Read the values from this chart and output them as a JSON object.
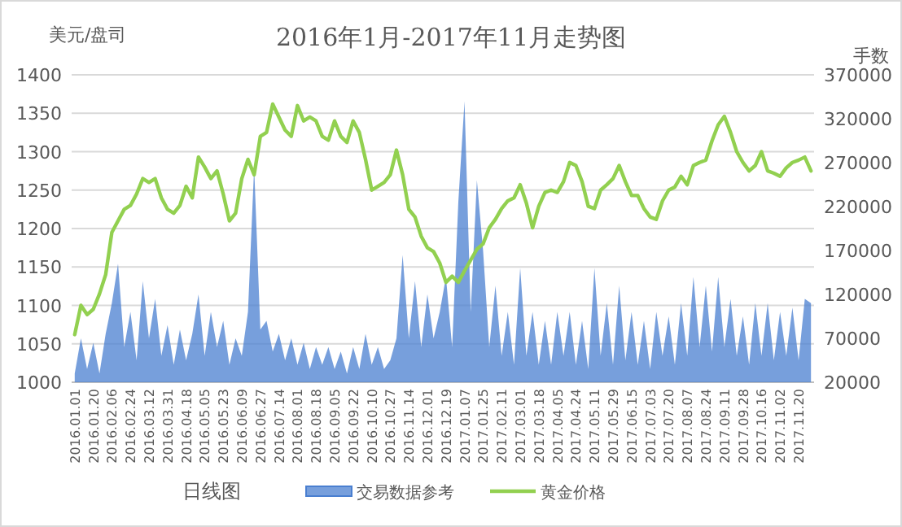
{
  "chart_data": {
    "type": "line",
    "title": "2016年1月-2017年11月走势图",
    "ylabel": "美元/盘司",
    "y2label": "手数",
    "categories": [
      "2016.01.01",
      null,
      null,
      "2016.01.20",
      null,
      null,
      "2016.02.06",
      null,
      null,
      "2016.02.24",
      null,
      null,
      "2016.03.12",
      null,
      null,
      "2016.03.31",
      null,
      null,
      "2016.04.18",
      null,
      null,
      "2016.05.05",
      null,
      null,
      "2016.05.23",
      null,
      null,
      "2016.06.09",
      null,
      null,
      "2016.06.27",
      null,
      null,
      "2016.07.14",
      null,
      null,
      "2016.08.01",
      null,
      null,
      "2016.08.18",
      null,
      null,
      "2016.09.05",
      null,
      null,
      "2016.09.22",
      null,
      null,
      "2016.10.10",
      null,
      null,
      "2016.10.27",
      null,
      null,
      "2016.11.14",
      null,
      null,
      "2016.12.01",
      null,
      null,
      "2016.12.19",
      null,
      null,
      "2017.01.07",
      null,
      null,
      "2017.01.25",
      null,
      null,
      "2017.02.11",
      null,
      null,
      "2017.03.01",
      null,
      null,
      "2017.03.18",
      null,
      null,
      "2017.04.05",
      null,
      null,
      "2017.04.24",
      null,
      null,
      "2017.05.11",
      null,
      null,
      "2017.05.29",
      null,
      null,
      "2017.06.15",
      null,
      null,
      "2017.07.03",
      null,
      null,
      "2017.07.20",
      null,
      null,
      "2017.08.07",
      null,
      null,
      "2017.08.24",
      null,
      null,
      "2017.09.11",
      null,
      null,
      "2017.09.28",
      null,
      null,
      "2017.10.16",
      null,
      null,
      "2017.11.02",
      null,
      null,
      "2017.11.20",
      null,
      null
    ],
    "series": [
      {
        "name": "交易数据参考",
        "type": "area",
        "axis": "y2",
        "color": "#4a7fd0",
        "values": [
          30000,
          70000,
          35000,
          65000,
          30000,
          75000,
          110000,
          155000,
          60000,
          100000,
          45000,
          135000,
          70000,
          115000,
          50000,
          85000,
          40000,
          80000,
          45000,
          75000,
          120000,
          50000,
          100000,
          60000,
          90000,
          40000,
          70000,
          50000,
          100000,
          265000,
          80000,
          90000,
          55000,
          75000,
          45000,
          70000,
          40000,
          65000,
          35000,
          60000,
          40000,
          60000,
          35000,
          55000,
          30000,
          60000,
          35000,
          75000,
          40000,
          60000,
          35000,
          45000,
          70000,
          165000,
          70000,
          135000,
          60000,
          120000,
          70000,
          100000,
          140000,
          60000,
          225000,
          340000,
          100000,
          250000,
          170000,
          60000,
          130000,
          50000,
          100000,
          40000,
          150000,
          50000,
          100000,
          40000,
          90000,
          40000,
          100000,
          50000,
          100000,
          40000,
          90000,
          35000,
          150000,
          50000,
          110000,
          40000,
          130000,
          45000,
          100000,
          40000,
          90000,
          35000,
          100000,
          50000,
          95000,
          40000,
          110000,
          50000,
          140000,
          60000,
          130000,
          55000,
          140000,
          60000,
          115000,
          50000,
          95000,
          40000,
          110000,
          50000,
          110000,
          45000,
          100000,
          50000,
          105000,
          45000,
          115000,
          110000
        ]
      },
      {
        "name": "黄金价格",
        "color": "#92d050",
        "values": [
          1062,
          1100,
          1088,
          1095,
          1115,
          1140,
          1195,
          1210,
          1225,
          1230,
          1245,
          1265,
          1260,
          1265,
          1240,
          1225,
          1220,
          1230,
          1255,
          1240,
          1293,
          1280,
          1265,
          1275,
          1245,
          1210,
          1220,
          1265,
          1290,
          1270,
          1320,
          1325,
          1362,
          1345,
          1328,
          1320,
          1360,
          1340,
          1345,
          1340,
          1320,
          1315,
          1340,
          1320,
          1312,
          1340,
          1325,
          1290,
          1250,
          1255,
          1260,
          1270,
          1302,
          1270,
          1225,
          1215,
          1190,
          1175,
          1170,
          1155,
          1130,
          1138,
          1130,
          1145,
          1159,
          1173,
          1180,
          1201,
          1212,
          1226,
          1236,
          1240,
          1257,
          1233,
          1201,
          1229,
          1247,
          1250,
          1247,
          1261,
          1286,
          1282,
          1261,
          1229,
          1226,
          1250,
          1257,
          1265,
          1282,
          1261,
          1243,
          1243,
          1226,
          1215,
          1212,
          1236,
          1250,
          1254,
          1268,
          1257,
          1282,
          1286,
          1289,
          1314,
          1335,
          1346,
          1325,
          1300,
          1286,
          1275,
          1282,
          1300,
          1275,
          1272,
          1268,
          1279,
          1286,
          1289,
          1293,
          1275
        ]
      }
    ],
    "ylim": [
      1000,
      1400
    ],
    "yticks": [
      1000,
      1050,
      1100,
      1150,
      1200,
      1250,
      1300,
      1350,
      1400
    ],
    "y2lim": [
      20000,
      370000
    ],
    "y2ticks": [
      20000,
      70000,
      120000,
      170000,
      220000,
      270000,
      320000,
      370000
    ],
    "grid": "y",
    "legend": "bottom",
    "annotations": [
      "日线图"
    ]
  }
}
